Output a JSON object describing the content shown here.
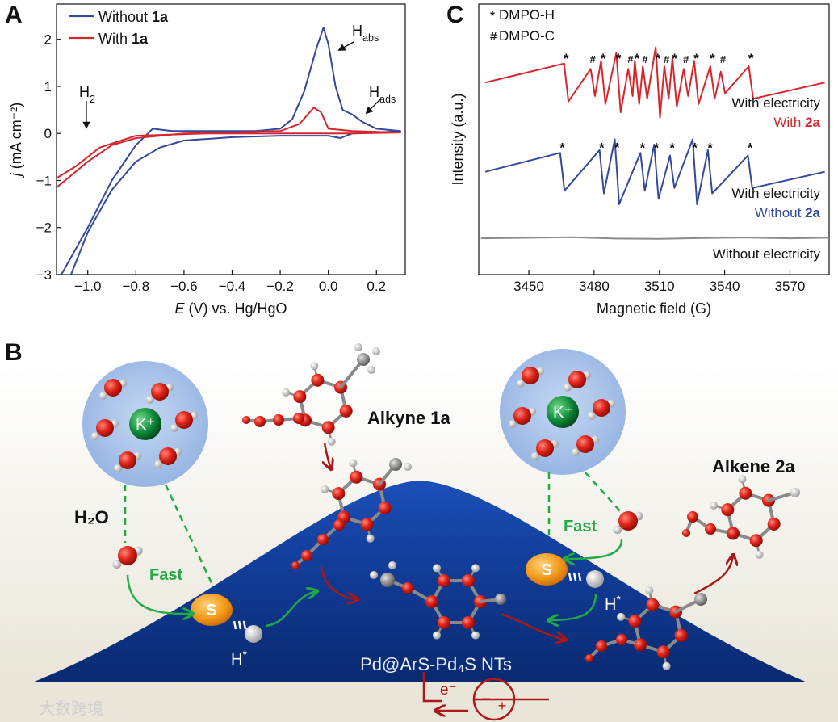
{
  "chart_data": [
    {
      "type": "line",
      "panel": "A",
      "x_label": "E (V) vs. Hg/HgO",
      "y_label": "j (mA cm⁻²)",
      "annotations": [
        "H2",
        "Habs",
        "Hads"
      ],
      "xlim": [
        -1.13,
        0.32
      ],
      "ylim": [
        -3,
        2.75
      ],
      "xticks": [
        {
          "value": -1.0,
          "label": "−1.0"
        },
        {
          "value": -0.8,
          "label": "−0.8"
        },
        {
          "value": -0.6,
          "label": "−0.6"
        },
        {
          "value": -0.4,
          "label": "−0.4"
        },
        {
          "value": -0.2,
          "label": "−0.2"
        },
        {
          "value": 0.0,
          "label": "0.0"
        },
        0.2
      ],
      "yticks": [
        {
          "value": -3,
          "label": "−3"
        },
        {
          "value": -2,
          "label": "−2"
        },
        {
          "value": -1,
          "label": "−1"
        },
        0,
        1,
        2
      ],
      "legend": "upper left",
      "series": [
        {
          "name": "Without 1a",
          "color": "#34499a",
          "x": [
            -1.11,
            -1.0,
            -0.9,
            -0.8,
            -0.73,
            -0.65,
            -0.5,
            -0.3,
            -0.2,
            -0.15,
            -0.1,
            -0.05,
            -0.02,
            0.0,
            0.03,
            0.06,
            0.1,
            0.14,
            0.2,
            0.3,
            0.2,
            0.1,
            0.05,
            0.0,
            -0.2,
            -0.4,
            -0.6,
            -0.7,
            -0.8,
            -0.9,
            -1.0,
            -1.07
          ],
          "values": [
            -3.0,
            -2.0,
            -1.0,
            -0.25,
            0.1,
            0.05,
            0.05,
            0.05,
            0.1,
            0.3,
            0.9,
            1.8,
            2.25,
            1.9,
            1.0,
            0.5,
            0.4,
            0.25,
            0.1,
            0.05,
            0.02,
            0.0,
            -0.1,
            -0.05,
            -0.05,
            -0.08,
            -0.15,
            -0.3,
            -0.6,
            -1.2,
            -2.1,
            -3.0
          ]
        },
        {
          "name": "With 1a",
          "color": "#d6262d",
          "x": [
            -1.13,
            -1.0,
            -0.9,
            -0.8,
            -0.6,
            -0.4,
            -0.2,
            -0.12,
            -0.06,
            -0.03,
            0.0,
            0.1,
            0.3,
            0.1,
            -0.2,
            -0.5,
            -0.8,
            -0.95,
            -1.05,
            -1.13
          ],
          "values": [
            -1.15,
            -0.6,
            -0.25,
            -0.1,
            0.0,
            0.02,
            0.05,
            0.2,
            0.55,
            0.45,
            0.1,
            0.05,
            0.02,
            0.0,
            0.0,
            0.0,
            -0.05,
            -0.3,
            -0.7,
            -0.95
          ]
        }
      ]
    },
    {
      "type": "line",
      "panel": "C",
      "x_label": "Magnetic field (G)",
      "y_label": "Intensity (a.u.)",
      "xlim": [
        3427,
        3588
      ],
      "ylim": [
        0,
        10
      ],
      "xticks": [
        3450,
        3480,
        3510,
        3540,
        3570
      ],
      "legend": [
        {
          "symbol": "*",
          "label": "DMPO-H",
          "color": "#111111"
        },
        {
          "symbol": "#",
          "label": "DMPO-C",
          "color": "#d6262d"
        }
      ],
      "series": [
        {
          "name": [
            "With electricity",
            "With 2a"
          ],
          "color": "#d6262d",
          "x": [
            3430,
            3466.2,
            3467.2,
            3468.2,
            3478.4,
            3479.4,
            3480.4,
            3483.2,
            3484.2,
            3485.2,
            3490.2,
            3491.2,
            3492.2,
            3495.7,
            3496.7,
            3497.7,
            3498.7,
            3499.7,
            3500.7,
            3502.4,
            3503.4,
            3504.4,
            3508.3,
            3509.3,
            3510.3,
            3512.3,
            3513.3,
            3514.3,
            3516.0,
            3517.0,
            3518.0,
            3521.2,
            3522.2,
            3523.2,
            3526.0,
            3527.0,
            3528.0,
            3533.4,
            3534.4,
            3535.4,
            3538.2,
            3539.2,
            3540.2,
            3551.1,
            3552.1,
            3553.1,
            3586
          ],
          "values": [
            7.1,
            7.8,
            7.1,
            6.4,
            7.6,
            7.1,
            6.6,
            7.9,
            7.1,
            6.3,
            8.2,
            7.1,
            6.0,
            7.6,
            7.1,
            6.6,
            7.9,
            7.1,
            6.3,
            7.7,
            7.1,
            6.5,
            8.4,
            7.1,
            5.8,
            7.7,
            7.1,
            6.5,
            8.0,
            7.1,
            6.2,
            7.6,
            7.1,
            6.6,
            7.9,
            7.1,
            6.3,
            7.7,
            7.1,
            6.5,
            7.5,
            7.1,
            6.7,
            7.7,
            7.1,
            6.5,
            7.1
          ],
          "peak_labels": [
            {
              "x": 3467.2,
              "symbol": "*"
            },
            {
              "x": 3479.4,
              "symbol": "#"
            },
            {
              "x": 3484.2,
              "symbol": "*"
            },
            {
              "x": 3491.2,
              "symbol": "*"
            },
            {
              "x": 3496.7,
              "symbol": "#"
            },
            {
              "x": 3499.7,
              "symbol": "*"
            },
            {
              "x": 3503.4,
              "symbol": "#"
            },
            {
              "x": 3509.3,
              "symbol": "*"
            },
            {
              "x": 3513.3,
              "symbol": "#"
            },
            {
              "x": 3517.0,
              "symbol": "*"
            },
            {
              "x": 3522.2,
              "symbol": "#"
            },
            {
              "x": 3527.0,
              "symbol": "*"
            },
            {
              "x": 3534.4,
              "symbol": "*"
            },
            {
              "x": 3539.2,
              "symbol": "#"
            },
            {
              "x": 3552.1,
              "symbol": "*"
            }
          ]
        },
        {
          "name": [
            "With electricity",
            "Without 2a"
          ],
          "color": "#34499a",
          "x": [
            3430,
            3464.4,
            3465.4,
            3466.4,
            3482.5,
            3483.5,
            3484.5,
            3489.5,
            3490.5,
            3491.5,
            3501.3,
            3502.3,
            3503.3,
            3507.6,
            3508.6,
            3509.6,
            3514.9,
            3515.9,
            3516.9,
            3525.3,
            3526.3,
            3527.3,
            3532.3,
            3533.3,
            3534.3,
            3550.7,
            3551.7,
            3552.7,
            3586
          ],
          "values": [
            3.8,
            4.5,
            3.8,
            3.1,
            4.6,
            3.8,
            3.0,
            5.0,
            3.8,
            2.6,
            4.5,
            3.8,
            3.1,
            4.8,
            3.8,
            2.8,
            4.4,
            3.8,
            3.2,
            5.0,
            3.8,
            2.6,
            4.6,
            3.8,
            3.0,
            4.4,
            3.8,
            3.2,
            3.8
          ],
          "peak_labels": [
            {
              "x": 3465.4,
              "symbol": "*"
            },
            {
              "x": 3483.5,
              "symbol": "*"
            },
            {
              "x": 3490.5,
              "symbol": "*"
            },
            {
              "x": 3502.3,
              "symbol": "*"
            },
            {
              "x": 3508.6,
              "symbol": "*"
            },
            {
              "x": 3515.9,
              "symbol": "*"
            },
            {
              "x": 3526.3,
              "symbol": "*"
            },
            {
              "x": 3533.3,
              "symbol": "*"
            },
            {
              "x": 3551.7,
              "symbol": "*"
            }
          ]
        },
        {
          "name": [
            "Without electricity"
          ],
          "color": "#8a8a8a",
          "x": [
            3428,
            3450,
            3470,
            3490,
            3510,
            3530,
            3550,
            3570,
            3588
          ],
          "values": [
            1.34,
            1.36,
            1.38,
            1.33,
            1.32,
            1.35,
            1.37,
            1.34,
            1.36
          ]
        }
      ]
    }
  ],
  "diagram": {
    "panel": "B",
    "alkyne": "Alkyne 1a",
    "alkene": "Alkene 2a",
    "water": "H₂O",
    "fast": [
      "Fast",
      "Fast"
    ],
    "s": [
      "S",
      "S"
    ],
    "h": [
      "H*",
      "H*"
    ],
    "k": [
      "K⁺",
      "K⁺"
    ],
    "catalyst": "Pd@ArS-Pd₄S NTs",
    "electron": "e⁻",
    "minus": "−",
    "plus": "+",
    "watermark": "大数跨境"
  }
}
